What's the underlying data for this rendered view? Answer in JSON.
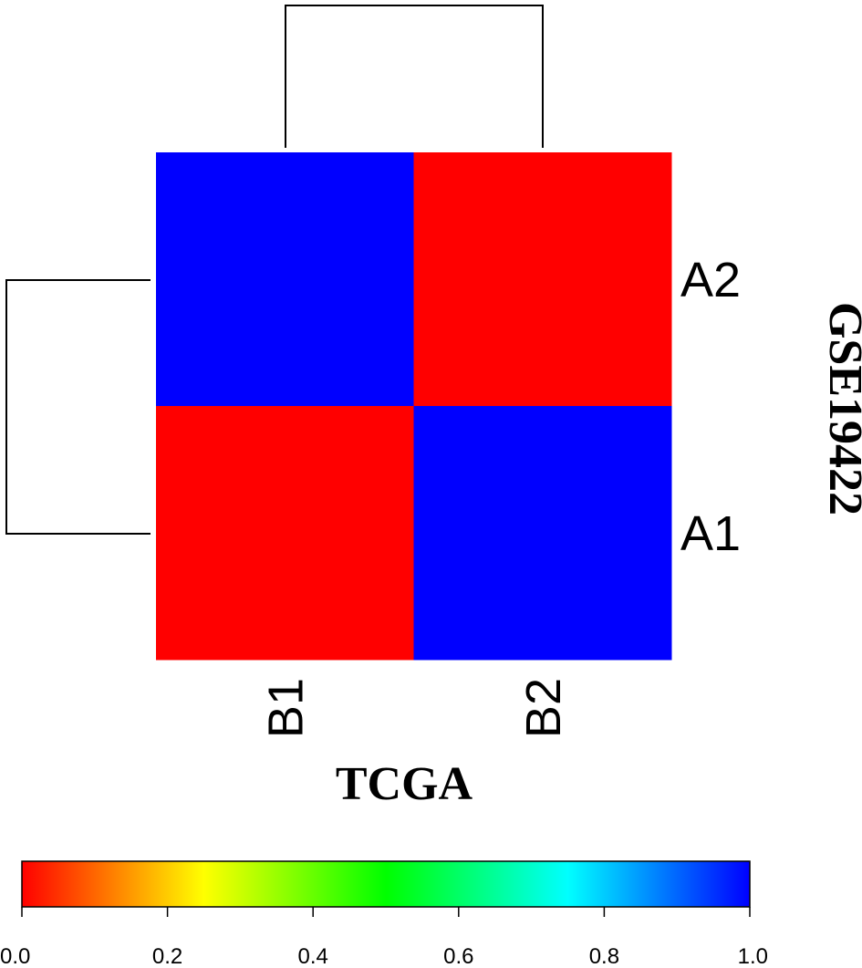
{
  "chart_data": {
    "type": "heatmap",
    "title": "",
    "xlabel": "TCGA",
    "ylabel": "GSE19422",
    "columns": [
      "B1",
      "B2"
    ],
    "rows": [
      "A2",
      "A1"
    ],
    "values": [
      [
        1.0,
        0.0
      ],
      [
        0.0,
        1.0
      ]
    ],
    "colorscale": {
      "min": 0.0,
      "max": 1.0,
      "stops": [
        "#ff0000",
        "#ffff00",
        "#00ff00",
        "#00ffff",
        "#0000ff"
      ],
      "ticks": [
        "0.0",
        "0.2",
        "0.4",
        "0.6",
        "0.8",
        "1.0"
      ]
    },
    "row_dendrogram": true,
    "column_dendrogram": true,
    "legend": "bottom"
  }
}
